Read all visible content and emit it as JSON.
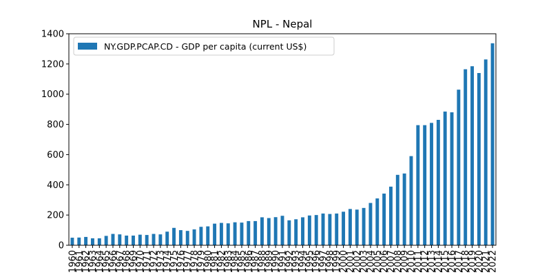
{
  "colors": {
    "bar": "#1f77b4",
    "axis": "#000000",
    "background": "#ffffff",
    "legend_border": "#cccccc"
  },
  "chart_data": {
    "type": "bar",
    "title": "NPL - Nepal",
    "xlabel": "",
    "ylabel": "",
    "ylim": [
      0,
      1400
    ],
    "yticks": [
      0,
      200,
      400,
      600,
      800,
      1000,
      1200,
      1400
    ],
    "grid": false,
    "legend_position": "upper-left",
    "categories": [
      "1960",
      "1961",
      "1962",
      "1963",
      "1964",
      "1965",
      "1966",
      "1967",
      "1968",
      "1969",
      "1970",
      "1971",
      "1972",
      "1973",
      "1974",
      "1975",
      "1976",
      "1977",
      "1978",
      "1979",
      "1980",
      "1981",
      "1982",
      "1983",
      "1984",
      "1985",
      "1986",
      "1987",
      "1988",
      "1989",
      "1990",
      "1991",
      "1992",
      "1993",
      "1994",
      "1995",
      "1996",
      "1997",
      "1998",
      "1999",
      "2000",
      "2001",
      "2002",
      "2003",
      "2004",
      "2005",
      "2006",
      "2007",
      "2008",
      "2009",
      "2010",
      "2011",
      "2012",
      "2013",
      "2014",
      "2015",
      "2016",
      "2017",
      "2018",
      "2019",
      "2020",
      "2021",
      "2022"
    ],
    "series": [
      {
        "name": "NY.GDP.PCAP.CD - GDP per capita (current US$)",
        "values": [
          50,
          51,
          55,
          46,
          46,
          62,
          75,
          72,
          64,
          64,
          70,
          68,
          75,
          72,
          90,
          115,
          100,
          95,
          105,
          122,
          125,
          143,
          148,
          145,
          152,
          150,
          160,
          160,
          185,
          180,
          186,
          195,
          165,
          172,
          185,
          197,
          200,
          210,
          207,
          210,
          222,
          240,
          236,
          247,
          280,
          310,
          342,
          388,
          466,
          475,
          590,
          795,
          795,
          810,
          830,
          885,
          880,
          1030,
          1165,
          1185,
          1140,
          1230,
          1337
        ]
      }
    ]
  }
}
